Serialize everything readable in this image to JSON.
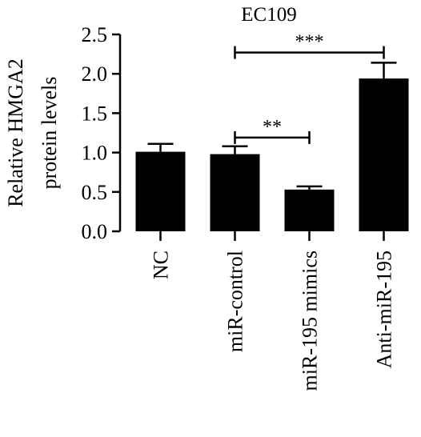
{
  "chart_data": {
    "type": "bar",
    "title": "EC109",
    "ylabel_lines": [
      "Relative HMGA2",
      "protein levels"
    ],
    "xlabel": "",
    "categories": [
      "NC",
      "miR-control",
      "miR-195 mimics",
      "Anti-miR-195"
    ],
    "values": [
      1.01,
      0.98,
      0.53,
      1.94
    ],
    "errors": [
      0.1,
      0.1,
      0.04,
      0.2
    ],
    "ylim": [
      0,
      2.5
    ],
    "yticks": [
      "0.0",
      "0.5",
      "1.0",
      "1.5",
      "2.0",
      "2.5"
    ],
    "bar_color": "#000000",
    "grid": false,
    "significance": [
      {
        "from": 1,
        "to": 2,
        "label": "**",
        "y": 1.19
      },
      {
        "from": 1,
        "to": 3,
        "label": "***",
        "y": 2.27
      }
    ]
  }
}
